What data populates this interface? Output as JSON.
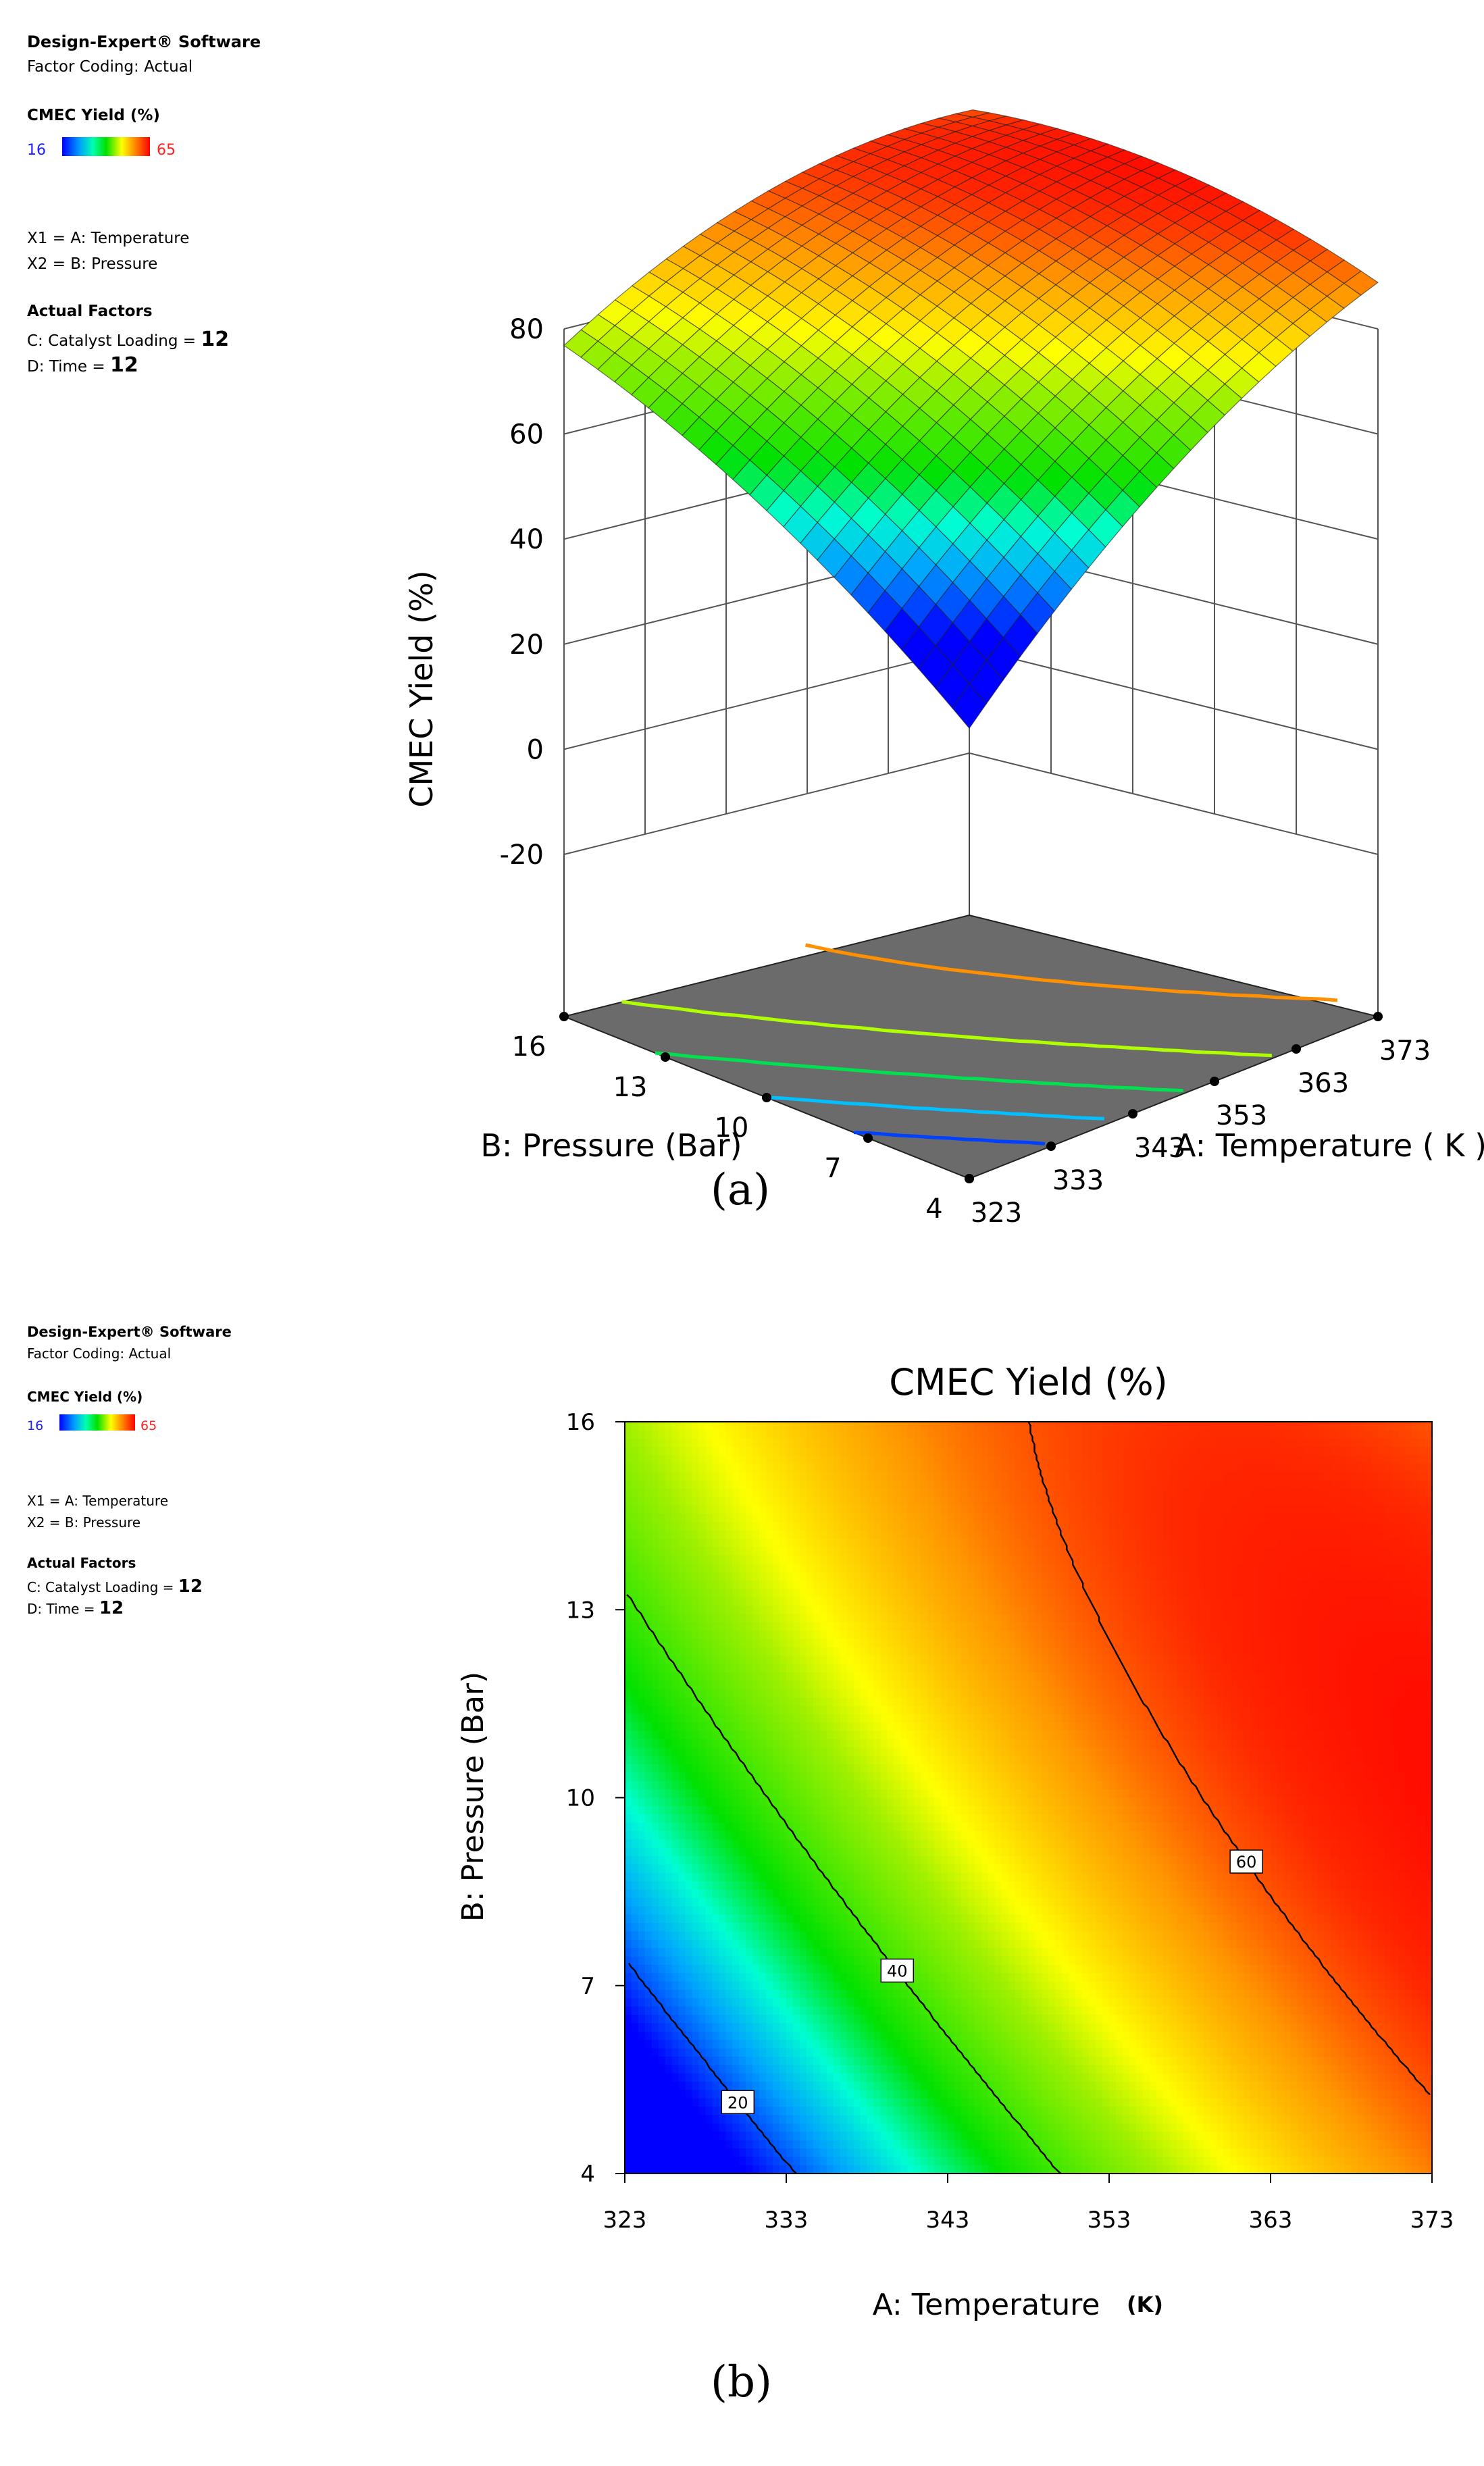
{
  "info": {
    "software": "Design-Expert® Software",
    "coding": "Factor Coding: Actual",
    "response": "CMEC Yield (%)",
    "scale_min": "16",
    "scale_max": "65",
    "x1": "X1 = A: Temperature",
    "x2": "X2 = B: Pressure",
    "actual_factors": "Actual Factors",
    "factor_c_label": "C: Catalyst Loading =",
    "factor_c_value": "12",
    "factor_d_label": "D: Time =",
    "factor_d_value": "12"
  },
  "colors": {
    "low": "#0000ff",
    "mid": "#00e000",
    "high": "#ff0000"
  },
  "chart_data": [
    {
      "type": "surface3d",
      "caption": "(a)",
      "zlabel": "CMEC Yield  (%)",
      "xlabel": "A: Temperature ( K )",
      "ylabel": "B: Pressure (Bar)",
      "z_ticks": [
        "80",
        "60",
        "40",
        "20",
        "0",
        "-20"
      ],
      "x_ticks": [
        "323",
        "333",
        "343",
        "353",
        "363",
        "373"
      ],
      "y_ticks": [
        "16",
        "13",
        "10",
        "7",
        "4"
      ],
      "xlim": [
        323,
        373
      ],
      "ylim": [
        4,
        16
      ],
      "zlim": [
        -20,
        80
      ],
      "corner_values": {
        "T323_P4": 4,
        "T373_P4": 58,
        "T323_P16": 46,
        "T373_P16": 60
      },
      "peak_value": 68
    },
    {
      "type": "contour",
      "caption": "(b)",
      "title": "CMEC Yield  (%)",
      "xlabel": "A: Temperature",
      "xunit": "(K)",
      "ylabel": "B: Pressure (Bar)",
      "x_ticks": [
        "323",
        "333",
        "343",
        "353",
        "363",
        "373"
      ],
      "y_ticks": [
        "16",
        "13",
        "10",
        "7",
        "4"
      ],
      "xlim": [
        323,
        373
      ],
      "ylim": [
        4,
        16
      ],
      "contour_levels": [
        "20",
        "40",
        "60"
      ]
    }
  ]
}
